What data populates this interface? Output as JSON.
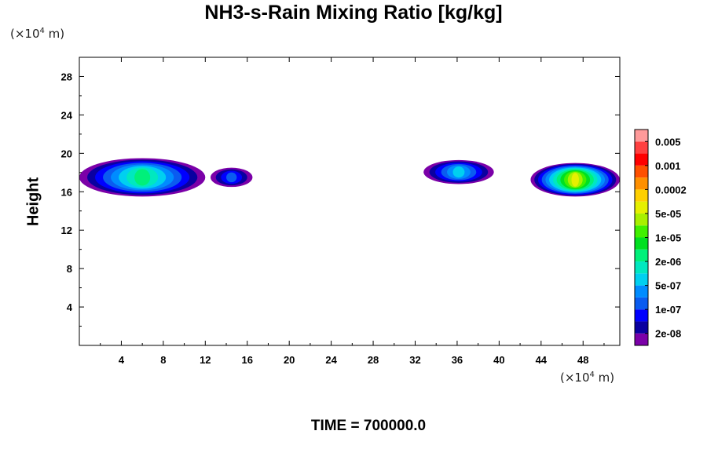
{
  "chart_data": {
    "type": "heatmap",
    "title": "NH3-s-Rain Mixing Ratio [kg/kg]",
    "ylabel": "Height",
    "x_unit": {
      "prefix": "(×10",
      "exp": "4",
      "suffix": " m)"
    },
    "y_unit": {
      "prefix": "(×10",
      "exp": "4",
      "suffix": " m)"
    },
    "xlim": [
      0,
      51.5
    ],
    "ylim": [
      0,
      30
    ],
    "x_ticks": [
      4,
      8,
      12,
      16,
      20,
      24,
      28,
      32,
      36,
      40,
      44,
      48
    ],
    "y_ticks": [
      4,
      8,
      12,
      16,
      20,
      24,
      28
    ],
    "time_label": "TIME = 700000.0",
    "colorbar": {
      "colors": [
        "#7b00a8",
        "#0a00a0",
        "#0000ff",
        "#0a5cf0",
        "#008cff",
        "#00d0f0",
        "#00e8c0",
        "#00f07a",
        "#00e020",
        "#40f000",
        "#a8f000",
        "#e6f000",
        "#ffd000",
        "#ff9000",
        "#ff5000",
        "#ff0000",
        "#ff4040",
        "#ff9a9a"
      ],
      "labels": [
        "2e-08",
        "1e-07",
        "5e-07",
        "2e-06",
        "1e-05",
        "5e-05",
        "0.0002",
        "0.001",
        "0.005"
      ]
    },
    "cloud_regions": [
      {
        "x_range": [
          0,
          12
        ],
        "y_range": [
          15.5,
          19.5
        ],
        "max_level": "5e-06"
      },
      {
        "x_range": [
          12.5,
          16.5
        ],
        "y_range": [
          16.5,
          18.5
        ],
        "max_level": "2e-07"
      },
      {
        "x_range": [
          32.8,
          39.5
        ],
        "y_range": [
          16.8,
          19.3
        ],
        "max_level": "5e-07"
      },
      {
        "x_range": [
          43,
          51.5
        ],
        "y_range": [
          15.5,
          19
        ],
        "max_level": "5e-05"
      }
    ]
  }
}
